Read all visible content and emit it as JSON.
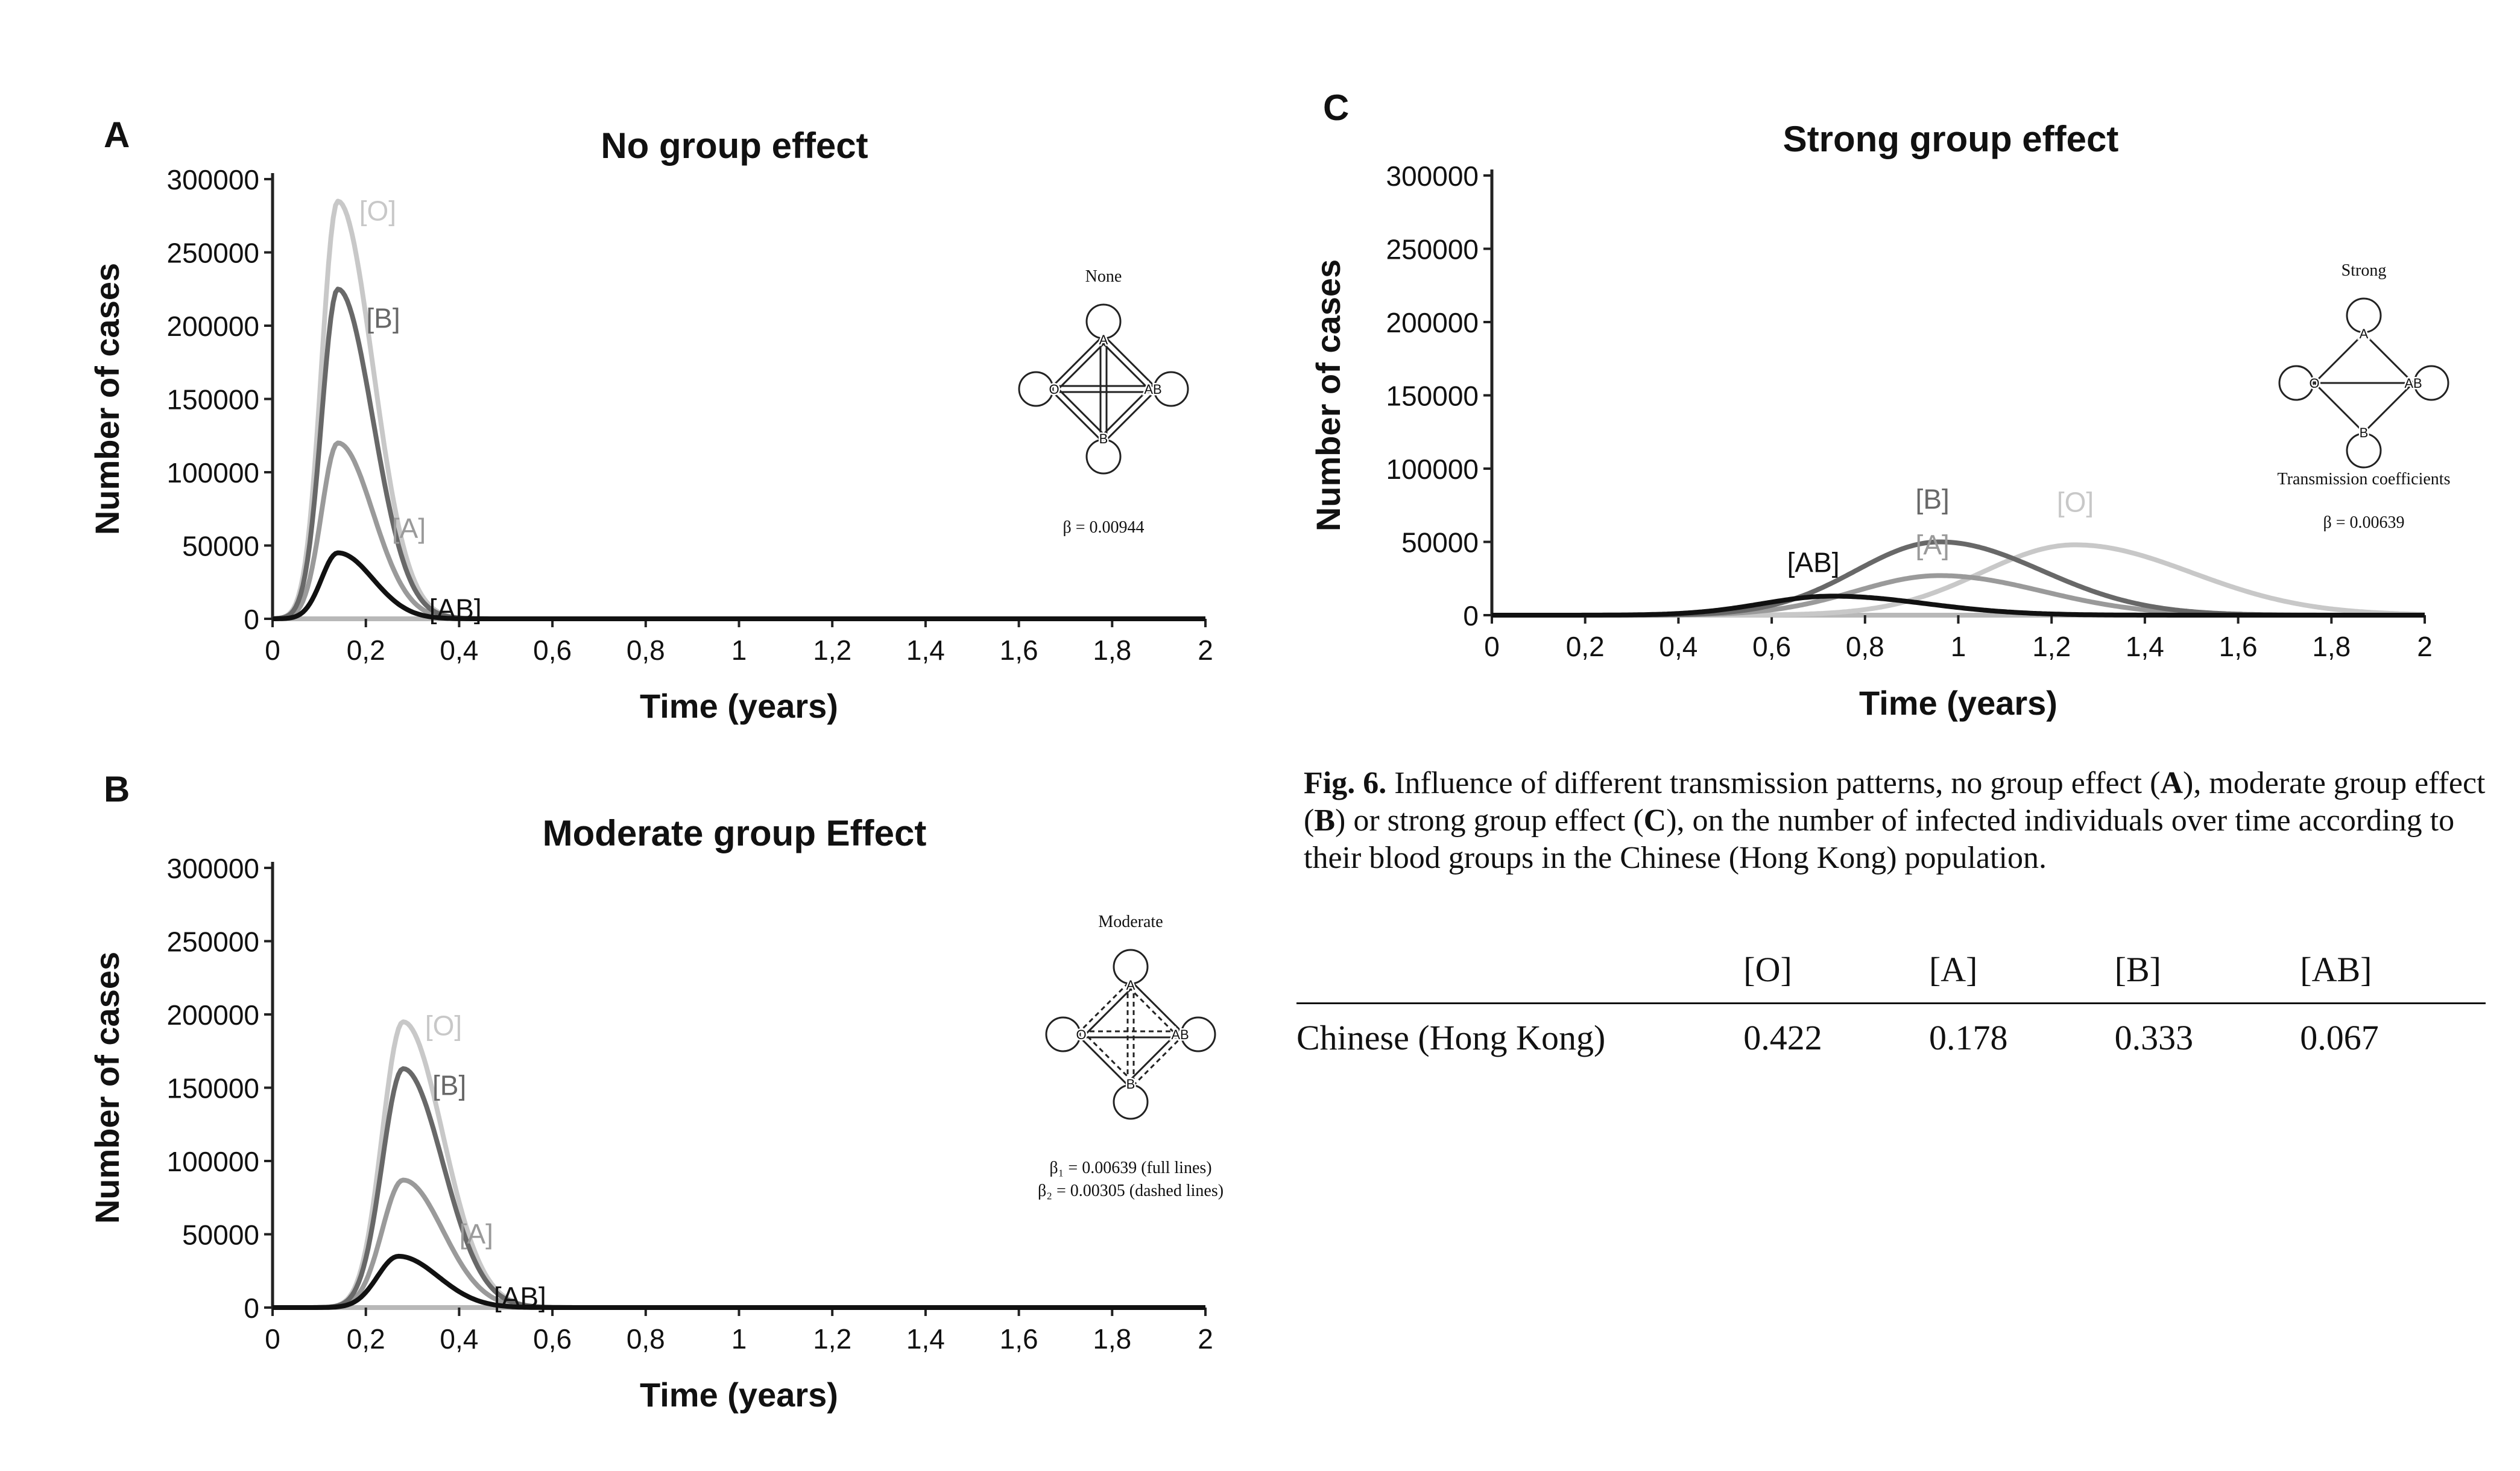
{
  "caption": {
    "fig_label": "Fig. 6.",
    "text_1": " Influence of different transmission patterns, no group effect (",
    "b_A": "A",
    "text_2": "), moderate group effect (",
    "b_B": "B",
    "text_3": ") or strong group effect (",
    "b_C": "C",
    "text_4": "), on the number of infected individuals over time according to their blood groups in the Chinese (Hong Kong) population."
  },
  "table": {
    "headers": [
      "",
      "[O]",
      "[A]",
      "[B]",
      "[AB]"
    ],
    "rows": [
      [
        "Chinese (Hong Kong)",
        "0.422",
        "0.178",
        "0.333",
        "0.067"
      ]
    ]
  },
  "colors": {
    "O": "#c8c8c8",
    "A": "#9a9a9a",
    "B": "#686868",
    "AB": "#111111"
  },
  "chart_data": [
    {
      "panel": "A",
      "type": "line",
      "title": "No group effect",
      "xlabel": "Time (years)",
      "ylabel": "Number of cases",
      "xlim": [
        0,
        2
      ],
      "ylim": [
        0,
        300000
      ],
      "x_ticks": [
        "0",
        "0,2",
        "0,4",
        "0,6",
        "0,8",
        "1",
        "1,2",
        "1,4",
        "1,6",
        "1,8",
        "2"
      ],
      "y_ticks": [
        "0",
        "50000",
        "100000",
        "150000",
        "200000",
        "250000",
        "300000"
      ],
      "series": [
        {
          "name": "[O]",
          "peak_x": 0.14,
          "peak_y": 285000,
          "rise": 0.035,
          "fall": 0.075
        },
        {
          "name": "[B]",
          "peak_x": 0.14,
          "peak_y": 225000,
          "rise": 0.035,
          "fall": 0.075
        },
        {
          "name": "[A]",
          "peak_x": 0.14,
          "peak_y": 120000,
          "rise": 0.035,
          "fall": 0.075
        },
        {
          "name": "[AB]",
          "peak_x": 0.14,
          "peak_y": 45000,
          "rise": 0.035,
          "fall": 0.075
        }
      ],
      "inset": {
        "label": "None",
        "beta": "β = 0.00944",
        "style": "none"
      }
    },
    {
      "panel": "B",
      "type": "line",
      "title": "Moderate group Effect",
      "xlabel": "Time (years)",
      "ylabel": "Number of cases",
      "xlim": [
        0,
        2
      ],
      "ylim": [
        0,
        300000
      ],
      "x_ticks": [
        "0",
        "0,2",
        "0,4",
        "0,6",
        "0,8",
        "1",
        "1,2",
        "1,4",
        "1,6",
        "1,8",
        "2"
      ],
      "y_ticks": [
        "0",
        "50000",
        "100000",
        "150000",
        "200000",
        "250000",
        "300000"
      ],
      "series": [
        {
          "name": "[O]",
          "peak_x": 0.28,
          "peak_y": 195000,
          "rise": 0.045,
          "fall": 0.085
        },
        {
          "name": "[B]",
          "peak_x": 0.28,
          "peak_y": 163000,
          "rise": 0.045,
          "fall": 0.085
        },
        {
          "name": "[A]",
          "peak_x": 0.28,
          "peak_y": 87000,
          "rise": 0.045,
          "fall": 0.085
        },
        {
          "name": "[AB]",
          "peak_x": 0.27,
          "peak_y": 35000,
          "rise": 0.045,
          "fall": 0.085
        }
      ],
      "inset": {
        "label": "Moderate",
        "beta": "β₁ = 0.00639 (full lines)",
        "beta2": "β₂ = 0.00305 (dashed lines)",
        "style": "moderate"
      }
    },
    {
      "panel": "C",
      "type": "line",
      "title": "Strong group effect",
      "xlabel": "Time (years)",
      "ylabel": "Number of cases",
      "xlim": [
        0,
        2
      ],
      "ylim": [
        0,
        300000
      ],
      "x_ticks": [
        "0",
        "0,2",
        "0,4",
        "0,6",
        "0,8",
        "1",
        "1,2",
        "1,4",
        "1,6",
        "1,8",
        "2"
      ],
      "y_ticks": [
        "0",
        "50000",
        "100000",
        "150000",
        "200000",
        "250000",
        "300000"
      ],
      "series": [
        {
          "name": "[O]",
          "peak_x": 1.25,
          "peak_y": 48000,
          "rise": 0.2,
          "fall": 0.25
        },
        {
          "name": "[B]",
          "peak_x": 0.96,
          "peak_y": 50000,
          "rise": 0.18,
          "fall": 0.22
        },
        {
          "name": "[A]",
          "peak_x": 0.96,
          "peak_y": 27000,
          "rise": 0.18,
          "fall": 0.22
        },
        {
          "name": "[AB]",
          "peak_x": 0.73,
          "peak_y": 13000,
          "rise": 0.15,
          "fall": 0.2
        }
      ],
      "inset": {
        "label": "Strong",
        "caption": "Transmission coefficients",
        "beta": "β = 0.00639",
        "style": "strong"
      }
    }
  ]
}
